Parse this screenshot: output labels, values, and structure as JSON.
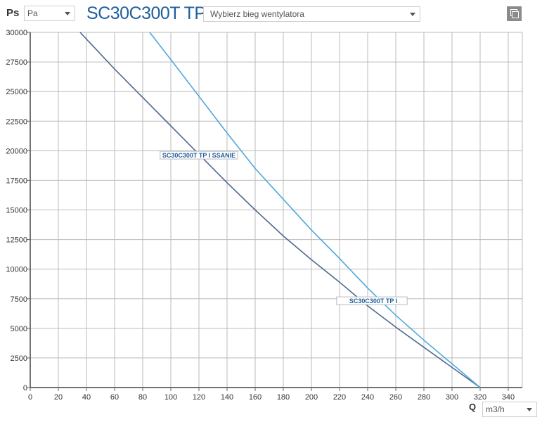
{
  "header": {
    "y_axis_symbol": "Ps",
    "unit_pressure": "Pa",
    "title": "SC30C300T TP",
    "fan_speed_placeholder": "Wybierz bieg wentylatora",
    "x_axis_symbol": "Q",
    "unit_flow": "m3/h"
  },
  "colors": {
    "curve_dark": "#4e6a8c",
    "curve_light": "#4fa8db",
    "grid": "#bbbbbb",
    "title": "#1f5f9f"
  },
  "chart_data": {
    "type": "line",
    "title": "SC30C300T TP",
    "xlabel": "Q",
    "ylabel": "Ps",
    "xlim": [
      0,
      350
    ],
    "ylim": [
      0,
      30000
    ],
    "x_ticks": [
      0,
      20,
      40,
      60,
      80,
      100,
      120,
      140,
      160,
      180,
      200,
      220,
      240,
      260,
      280,
      300,
      320,
      340
    ],
    "y_ticks": [
      0,
      2500,
      5000,
      7500,
      10000,
      12500,
      15000,
      17500,
      20000,
      22500,
      25000,
      27500,
      30000
    ],
    "grid": true,
    "series": [
      {
        "name": "SC30C300T TP I SSANIE",
        "color": "#4e6a8c",
        "label_x": 120,
        "label_y": 19600,
        "points": [
          [
            35.5,
            30000
          ],
          [
            60,
            26900
          ],
          [
            80,
            24500
          ],
          [
            100,
            22100
          ],
          [
            120,
            19700
          ],
          [
            140,
            17300
          ],
          [
            160,
            15000
          ],
          [
            180,
            12800
          ],
          [
            200,
            10800
          ],
          [
            220,
            8900
          ],
          [
            240,
            6900
          ],
          [
            260,
            5100
          ],
          [
            280,
            3400
          ],
          [
            300,
            1700
          ],
          [
            320,
            0
          ]
        ]
      },
      {
        "name": "SC30C300T TP I",
        "color": "#4fa8db",
        "label_x": 244,
        "label_y": 7300,
        "points": [
          [
            85,
            30000
          ],
          [
            100,
            27700
          ],
          [
            120,
            24600
          ],
          [
            140,
            21500
          ],
          [
            160,
            18500
          ],
          [
            180,
            15900
          ],
          [
            200,
            13300
          ],
          [
            220,
            10900
          ],
          [
            240,
            8400
          ],
          [
            260,
            6100
          ],
          [
            280,
            4000
          ],
          [
            300,
            2000
          ],
          [
            320,
            0
          ]
        ]
      }
    ]
  }
}
